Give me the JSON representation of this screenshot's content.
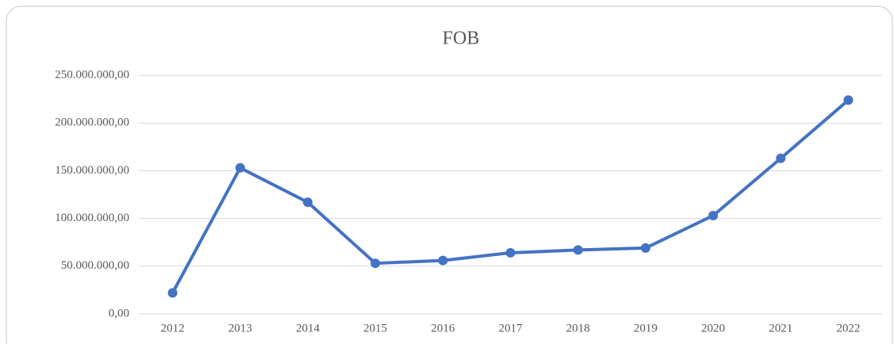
{
  "chart_data": {
    "type": "line",
    "title": "FOB",
    "categories": [
      "2012",
      "2013",
      "2014",
      "2015",
      "2016",
      "2017",
      "2018",
      "2019",
      "2020",
      "2021",
      "2022"
    ],
    "series": [
      {
        "name": "FOB",
        "color": "#4472c4",
        "values": [
          22000000,
          153000000,
          117000000,
          53000000,
          56000000,
          64000000,
          67000000,
          69000000,
          103000000,
          163000000,
          224000000
        ]
      }
    ],
    "ylim": [
      0,
      250000000
    ],
    "yticks": [
      {
        "value": 0,
        "label": "0,00"
      },
      {
        "value": 50000000,
        "label": "50.000.000,00"
      },
      {
        "value": 100000000,
        "label": "100.000.000,00"
      },
      {
        "value": 150000000,
        "label": "150.000.000,00"
      },
      {
        "value": 200000000,
        "label": "200.000.000,00"
      },
      {
        "value": 250000000,
        "label": "250.000.000,00"
      }
    ],
    "grid": true
  }
}
